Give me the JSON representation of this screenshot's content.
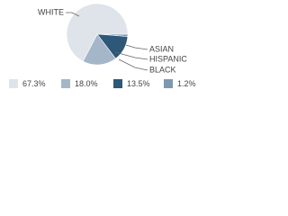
{
  "chart_data": {
    "type": "pie",
    "categories": [
      "WHITE",
      "BLACK",
      "ASIAN",
      "HISPANIC"
    ],
    "values": [
      67.3,
      18.0,
      13.5,
      1.2
    ],
    "value_labels": [
      "67.3%",
      "18.0%",
      "13.5%",
      "1.2%"
    ],
    "colors": [
      "#dfe4ea",
      "#a5b6c8",
      "#2d5878",
      "#7f98b2"
    ]
  }
}
